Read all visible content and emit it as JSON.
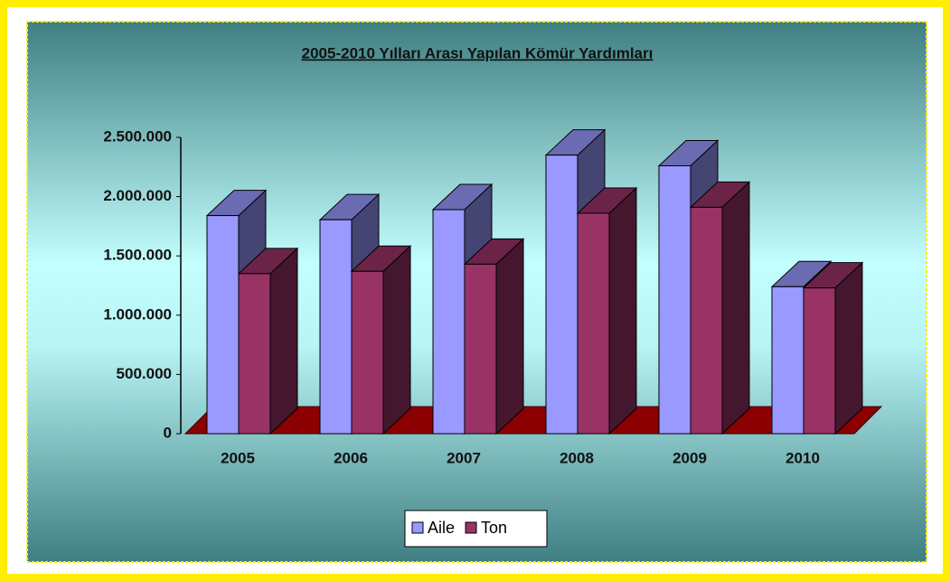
{
  "chart_data": {
    "type": "bar3d",
    "title": "2005-2010 Yılları Arası Yapılan Kömür Yardımları",
    "categories": [
      "2005",
      "2006",
      "2007",
      "2008",
      "2009",
      "2010"
    ],
    "series": [
      {
        "name": "Aile",
        "color": "#9999ff",
        "values": [
          1840000,
          1805000,
          1890000,
          2350000,
          2260000,
          1240000
        ]
      },
      {
        "name": "Ton",
        "color": "#993366",
        "values": [
          1350000,
          1370000,
          1430000,
          1860000,
          1910000,
          1230000
        ]
      }
    ],
    "ylim": [
      0,
      2500000
    ],
    "yticks": [
      0,
      {
        "value": 500000,
        "label": "500.000"
      },
      {
        "value": 1000000,
        "label": "1.000.000"
      },
      {
        "value": 1500000,
        "label": "1.500.000"
      },
      {
        "value": 2000000,
        "label": "2.000.000"
      },
      {
        "value": 2500000,
        "label": "2.500.000"
      }
    ],
    "legend": "bottom"
  }
}
